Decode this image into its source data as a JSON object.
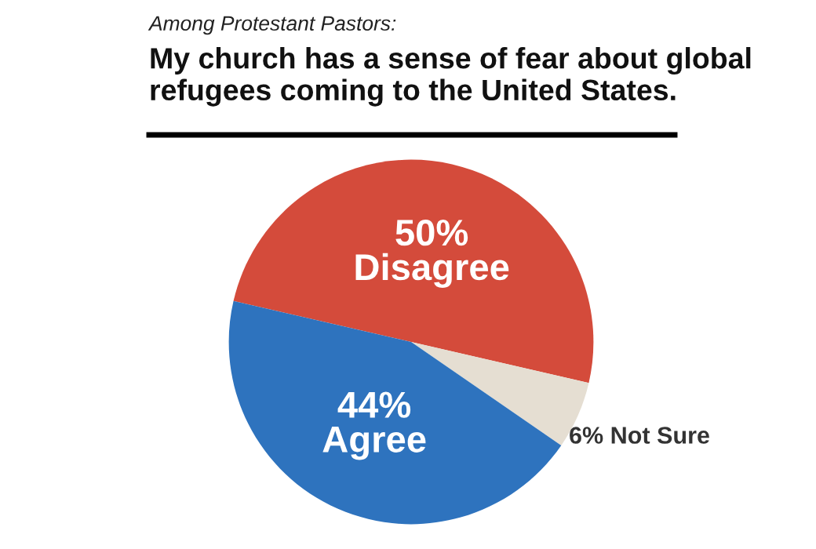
{
  "chart_data": {
    "type": "pie",
    "subtitle": "Among Protestant Pastors:",
    "title": "My church has a sense of fear about global refugees coming to the United States.",
    "categories": [
      "Disagree",
      "Not Sure",
      "Agree"
    ],
    "values": [
      50,
      6,
      44
    ],
    "value_labels": [
      "50%",
      "6%",
      "44%"
    ],
    "colors": [
      "#d44b3b",
      "#e5ded2",
      "#2e73be"
    ],
    "legend": false
  }
}
